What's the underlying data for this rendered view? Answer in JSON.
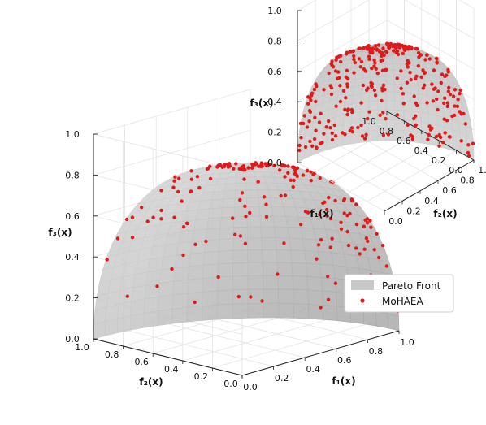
{
  "chart_data": [
    {
      "type": "scatter3d",
      "panel": "main",
      "view": "looking toward the origin from below the f1-f2 plane",
      "surface": {
        "name": "Pareto Front",
        "shape": "unit sphere octant, f1^2+f2^2+f3^2=1, f_i>=0",
        "color": "#c8c8c8"
      },
      "points": {
        "name": "MoHAEA",
        "color": "#e0191a",
        "count_approx": 190,
        "distribution": "spread along the spherical front, denser toward the f1 edge"
      },
      "axes": {
        "x": {
          "label": "f₁(x)",
          "range": [
            0,
            1
          ],
          "ticks": [
            "0.0",
            "0.2",
            "0.4",
            "0.6",
            "0.8",
            "1.0"
          ]
        },
        "y": {
          "label": "f₂(x)",
          "range": [
            0,
            1
          ],
          "ticks": [
            "0.0",
            "0.2",
            "0.4",
            "0.6",
            "0.8",
            "1.0"
          ]
        },
        "z": {
          "label": "f₃(x)",
          "range": [
            0,
            1
          ],
          "ticks": [
            "0.0",
            "0.2",
            "0.4",
            "0.6",
            "0.8",
            "1.0"
          ]
        }
      },
      "grid": true
    },
    {
      "type": "scatter3d",
      "panel": "inset",
      "view": "standard, looking toward the origin from above",
      "surface": {
        "name": "Pareto Front",
        "shape": "unit sphere octant",
        "color": "#c8c8c8"
      },
      "points": {
        "name": "MoHAEA",
        "color": "#e0191a",
        "count_approx": 300,
        "distribution": "uniform over the front"
      },
      "axes": {
        "x": {
          "label": "f₁(x)",
          "range": [
            0,
            1
          ],
          "ticks": [
            "0.0",
            "0.2",
            "0.4",
            "0.6",
            "0.8",
            "1.0"
          ]
        },
        "y": {
          "label": "f₂(x)",
          "range": [
            0,
            1
          ],
          "ticks": [
            "0.0",
            "0.2",
            "0.4",
            "0.6",
            "0.8",
            "1.0"
          ]
        },
        "z": {
          "label": "f₃(x)",
          "range": [
            0,
            1
          ],
          "ticks": [
            "0.0",
            "0.2",
            "0.4",
            "0.6",
            "0.8",
            "1.0"
          ]
        }
      },
      "grid": true
    }
  ],
  "legend": {
    "placement": "right",
    "entries": [
      {
        "label": "Pareto Front",
        "color": "#c8c8c8",
        "marker": "patch"
      },
      {
        "label": "MoHAEA",
        "color": "#e0191a",
        "marker": "dot"
      }
    ]
  }
}
